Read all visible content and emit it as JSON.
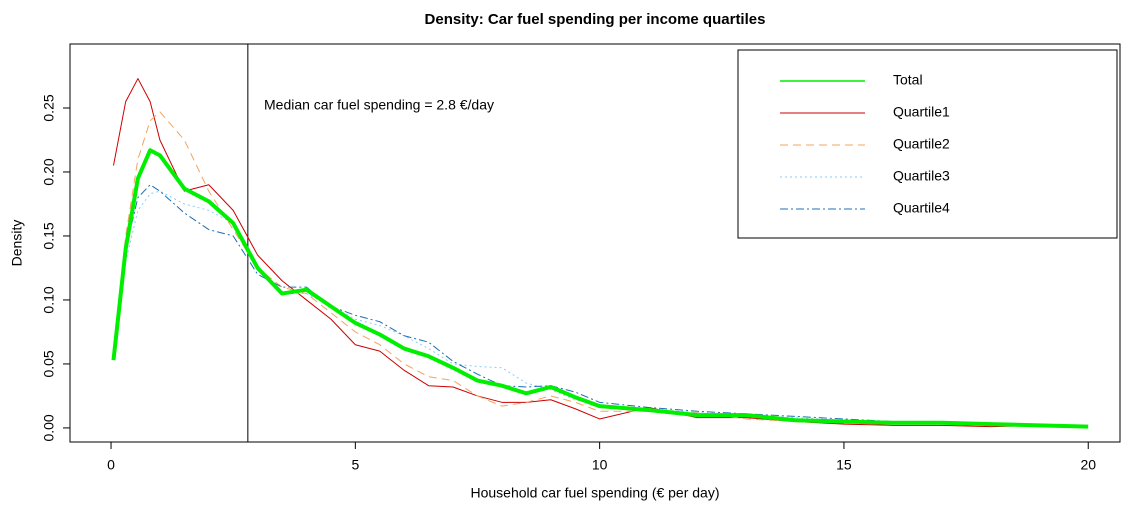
{
  "chart_data": {
    "type": "line",
    "title": "Density: Car fuel spending per income quartiles",
    "xlabel": "Household car fuel spending (€ per day)",
    "ylabel": "Density",
    "x": [
      0.05,
      0.3,
      0.55,
      0.8,
      1.0,
      1.5,
      2,
      2.5,
      3,
      3.5,
      4,
      4.5,
      5,
      5.5,
      6,
      6.5,
      7,
      7.5,
      8,
      8.5,
      9,
      9.5,
      10,
      11,
      12,
      13,
      14,
      15,
      16,
      17,
      18,
      19,
      20
    ],
    "series": [
      {
        "name": "Total",
        "color": "#00ee00",
        "linestyle": "solid",
        "linewidth": 4,
        "values": [
          0.053,
          0.14,
          0.195,
          0.217,
          0.213,
          0.187,
          0.177,
          0.16,
          0.125,
          0.105,
          0.108,
          0.095,
          0.082,
          0.073,
          0.062,
          0.056,
          0.047,
          0.037,
          0.033,
          0.027,
          0.032,
          0.024,
          0.017,
          0.014,
          0.01,
          0.01,
          0.006,
          0.005,
          0.004,
          0.004,
          0.003,
          0.002,
          0.001
        ]
      },
      {
        "name": "Quartile1",
        "color": "#cc0000",
        "linestyle": "solid",
        "linewidth": 1,
        "values": [
          0.205,
          0.255,
          0.273,
          0.255,
          0.225,
          0.185,
          0.19,
          0.17,
          0.135,
          0.115,
          0.1,
          0.085,
          0.065,
          0.06,
          0.045,
          0.033,
          0.032,
          0.025,
          0.02,
          0.02,
          0.022,
          0.015,
          0.007,
          0.016,
          0.008,
          0.008,
          0.005,
          0.003,
          0.002,
          0.002,
          0.001,
          0.002,
          null
        ]
      },
      {
        "name": "Quartile2",
        "color": "#f4a460",
        "linestyle": "dashed",
        "linewidth": 1,
        "values": [
          0.06,
          0.15,
          0.21,
          0.24,
          0.247,
          0.225,
          0.185,
          0.155,
          0.125,
          0.11,
          0.105,
          0.09,
          0.075,
          0.065,
          0.05,
          0.04,
          0.037,
          0.025,
          0.017,
          0.02,
          0.025,
          0.02,
          0.013,
          0.013,
          0.012,
          0.007,
          0.005,
          0.004,
          0.003,
          0.003,
          0.002,
          0.003,
          null
        ]
      },
      {
        "name": "Quartile3",
        "color": "#87cefa",
        "linestyle": "dotted",
        "linewidth": 1,
        "values": [
          0.06,
          0.13,
          0.17,
          0.183,
          0.185,
          0.175,
          0.17,
          0.16,
          0.125,
          0.105,
          0.105,
          0.095,
          0.085,
          0.08,
          0.072,
          0.062,
          0.05,
          0.048,
          0.047,
          0.035,
          0.03,
          0.022,
          0.018,
          0.015,
          0.012,
          0.01,
          0.008,
          0.006,
          0.005,
          0.004,
          0.003,
          0.002,
          null
        ]
      },
      {
        "name": "Quartile4",
        "color": "#1f6fb4",
        "linestyle": "dashdot",
        "linewidth": 1,
        "values": [
          0.06,
          0.14,
          0.18,
          0.19,
          0.185,
          0.168,
          0.155,
          0.15,
          0.12,
          0.11,
          0.11,
          0.095,
          0.088,
          0.083,
          0.072,
          0.067,
          0.052,
          0.042,
          0.033,
          0.032,
          0.033,
          0.028,
          0.02,
          0.016,
          0.013,
          0.011,
          0.009,
          0.007,
          0.005,
          0.004,
          0.003,
          0.002,
          0.001
        ]
      }
    ],
    "reference_line": {
      "x": 2.8,
      "label": "Median car fuel spending = 2.8 €/day"
    },
    "xlim": [
      -0.84,
      20.65
    ],
    "ylim": [
      -0.011,
      0.3
    ],
    "xticks": [
      0,
      5,
      10,
      15,
      20
    ],
    "yticks": [
      {
        "value": 0,
        "label": "0.00"
      },
      0.05,
      {
        "value": 0.1,
        "label": "0.10"
      },
      0.15,
      {
        "value": 0.2,
        "label": "0.20"
      },
      0.25
    ],
    "legend": "upper right"
  }
}
